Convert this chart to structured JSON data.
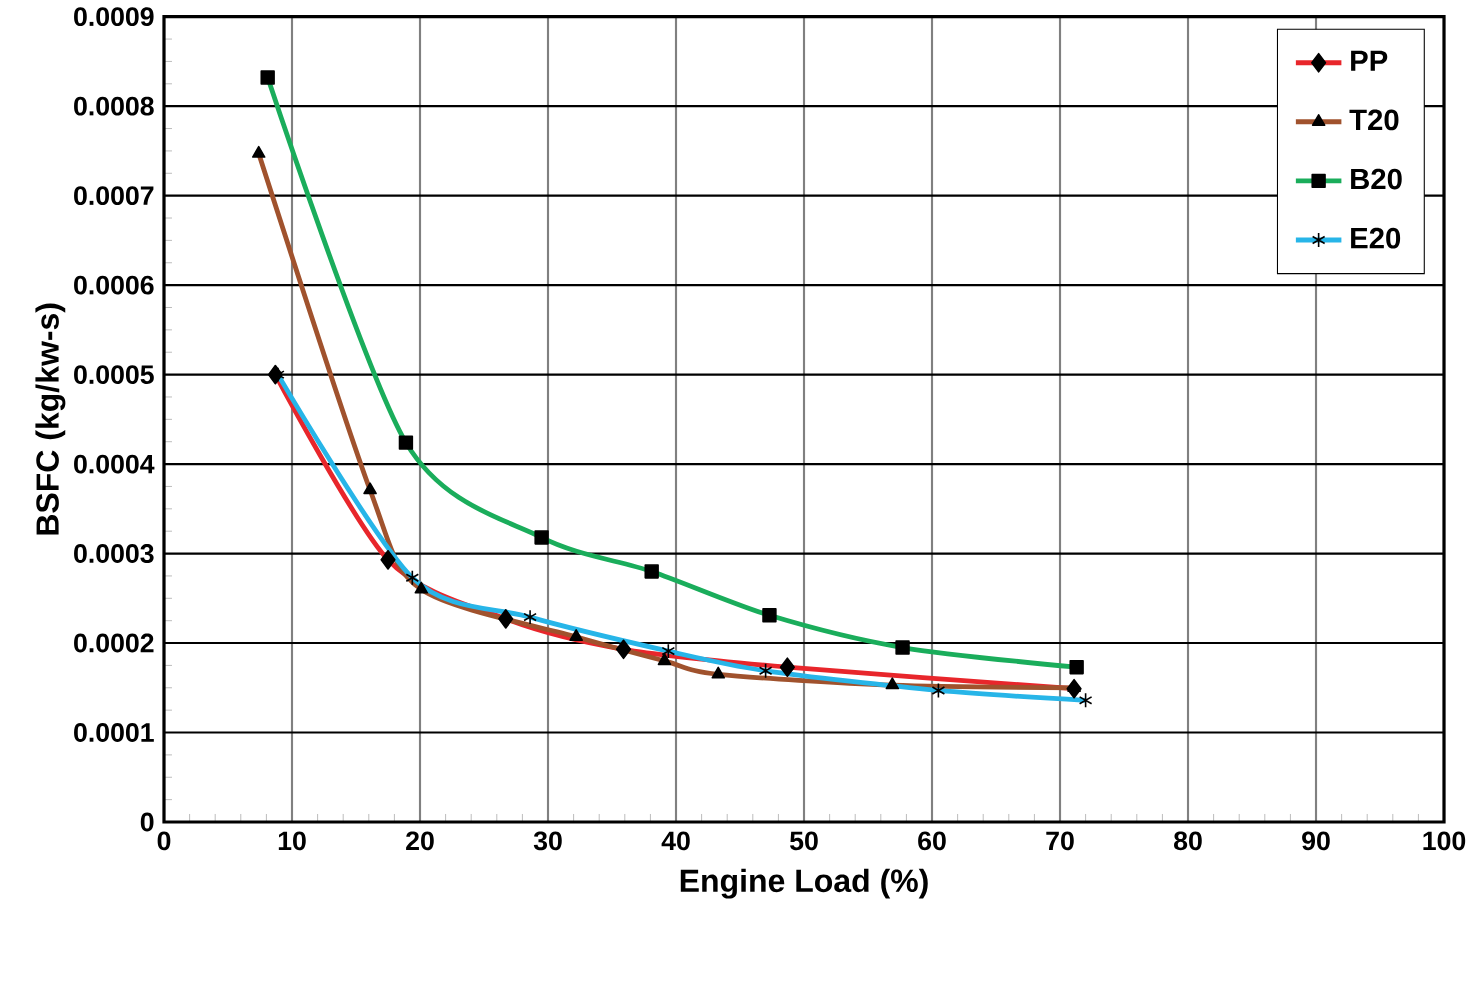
{
  "chart_data": {
    "type": "line",
    "xlabel": "Engine Load (%)",
    "ylabel": "BSFC (kg/kw-s)",
    "xlim": [
      0,
      100
    ],
    "xticks": [
      0,
      10,
      20,
      30,
      40,
      50,
      60,
      70,
      80,
      90,
      100
    ],
    "ylim": [
      0,
      0.0009
    ],
    "yticks": [
      0,
      0.0001,
      0.0002,
      0.0003,
      0.0004,
      0.0005,
      0.0006,
      0.0007,
      0.0008,
      0.0009
    ],
    "grid": true,
    "legend": "top right",
    "series": [
      {
        "name": "PP",
        "color": "#e8262b",
        "marker": "diamond",
        "x": [
          8.7,
          17.5,
          26.7,
          35.9,
          48.7,
          71.1
        ],
        "values": [
          0.0005,
          0.000293,
          0.000227,
          0.000193,
          0.000173,
          0.000149
        ]
      },
      {
        "name": "T20",
        "color": "#a0522d",
        "marker": "triangle",
        "x": [
          7.4,
          16.1,
          20.1,
          32.2,
          39.1,
          43.3,
          56.9,
          71.1
        ],
        "values": [
          0.000747,
          0.000371,
          0.00026,
          0.000207,
          0.00018,
          0.000165,
          0.000153,
          0.00015
        ]
      },
      {
        "name": "B20",
        "color": "#1aad5b",
        "marker": "square",
        "x": [
          8.1,
          18.9,
          29.5,
          38.1,
          47.3,
          57.7,
          71.3
        ],
        "values": [
          0.000832,
          0.000424,
          0.000318,
          0.00028,
          0.000231,
          0.000195,
          0.000173
        ]
      },
      {
        "name": "E20",
        "color": "#27b5e8",
        "marker": "cross",
        "x": [
          8.9,
          19.4,
          28.6,
          39.4,
          47.0,
          60.5,
          72.0
        ],
        "values": [
          0.0005,
          0.000273,
          0.000229,
          0.000191,
          0.000169,
          0.000147,
          0.000136
        ]
      }
    ]
  }
}
